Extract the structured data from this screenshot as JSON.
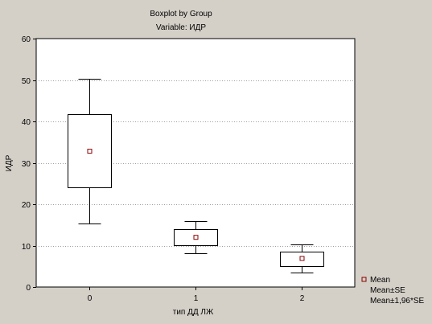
{
  "chart_data": {
    "type": "boxplot",
    "title": "Boxplot by Group",
    "subtitle": "Variable: ИДР",
    "xlabel": "тип ДД ЛЖ",
    "ylabel": "ИДР",
    "ylim": [
      0,
      60
    ],
    "yticks": [
      0,
      10,
      20,
      30,
      40,
      50,
      60
    ],
    "grid": true,
    "categories": [
      "0",
      "1",
      "2"
    ],
    "groups": [
      {
        "category": "0",
        "mean": 32.8,
        "se_low": 24.0,
        "se_high": 41.7,
        "ci_low": 15.4,
        "ci_high": 50.3
      },
      {
        "category": "1",
        "mean": 12.0,
        "se_low": 10.1,
        "se_high": 14.0,
        "ci_low": 8.2,
        "ci_high": 16.0
      },
      {
        "category": "2",
        "mean": 6.9,
        "se_low": 5.1,
        "se_high": 8.6,
        "ci_low": 3.5,
        "ci_high": 10.3
      }
    ],
    "legend": {
      "position": "right-bottom",
      "entries": [
        "Mean",
        "Mean±SE",
        "Mean±1,96*SE"
      ]
    },
    "colors": {
      "background": "#d4d0c8",
      "plot_background": "#ffffff",
      "mean_marker": "#8b0000",
      "grid": "#a0a0a0"
    }
  }
}
